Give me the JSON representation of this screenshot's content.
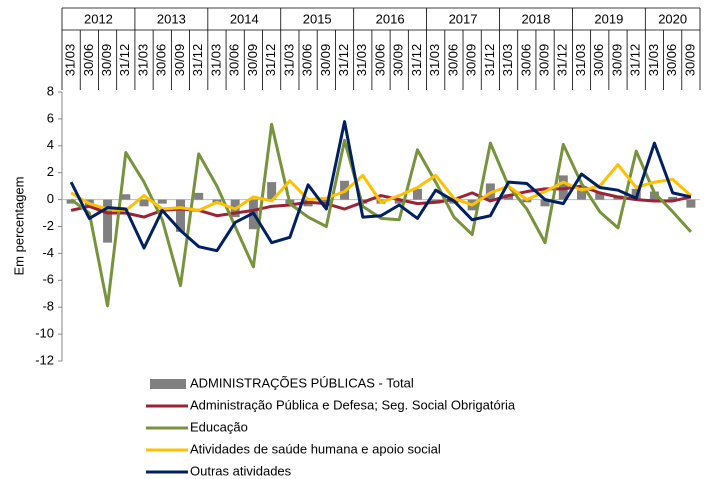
{
  "chart_data": {
    "type": "line",
    "y_label": "Em percentagem",
    "years": [
      "2012",
      "2013",
      "2014",
      "2015",
      "2016",
      "2017",
      "2018",
      "2019",
      "2020"
    ],
    "categories": [
      "31/03",
      "30/06",
      "30/09",
      "31/12",
      "31/03",
      "30/06",
      "30/09",
      "31/12",
      "31/03",
      "30/06",
      "30/09",
      "31/12",
      "31/03",
      "30/06",
      "30/09",
      "31/12",
      "31/03",
      "30/06",
      "30/09",
      "31/12",
      "31/03",
      "30/06",
      "30/09",
      "31/12",
      "31/03",
      "30/06",
      "30/09",
      "31/12",
      "31/03",
      "30/06",
      "30/09",
      "31/12",
      "31/03",
      "30/06",
      "30/09"
    ],
    "ylim": [
      -12,
      8
    ],
    "yticks": [
      -12,
      -10,
      -8,
      -6,
      -4,
      -2,
      0,
      2,
      4,
      6,
      8
    ],
    "series": [
      {
        "name": "ADMINISTRAÇÕES PÚBLICAS - Total",
        "type": "bar",
        "color": "#808080",
        "values": [
          -0.3,
          -0.5,
          -3.2,
          0.4,
          -0.5,
          -0.3,
          -2.4,
          0.5,
          -0.3,
          -1.3,
          -2.2,
          1.3,
          -0.3,
          -0.5,
          -0.5,
          1.4,
          -0.3,
          -0.3,
          -0.3,
          0.8,
          -0.3,
          -0.3,
          -0.8,
          1.2,
          0.4,
          -0.2,
          -0.5,
          1.8,
          0.7,
          0.5,
          0.3,
          0.8,
          0.6,
          0.2,
          -0.6
        ]
      },
      {
        "name": "Administração Pública e Defesa; Seg. Social Obrigatória",
        "type": "line",
        "color": "#9b2335",
        "values": [
          -0.8,
          -0.5,
          -1.0,
          -1.0,
          -1.3,
          -0.8,
          -0.7,
          -0.8,
          -1.2,
          -1.0,
          -0.8,
          -0.5,
          -0.4,
          -0.2,
          -0.3,
          -0.7,
          -0.2,
          0.3,
          0.0,
          -0.3,
          -0.2,
          0.0,
          0.5,
          -0.1,
          0.3,
          0.6,
          0.8,
          0.8,
          1.0,
          0.5,
          0.2,
          0.0,
          -0.1,
          -0.1,
          0.2
        ]
      },
      {
        "name": "Educação",
        "type": "line",
        "color": "#77933c",
        "values": [
          0.0,
          -1.0,
          -7.9,
          3.5,
          1.3,
          -1.5,
          -6.4,
          3.4,
          1.0,
          -2.0,
          -5.0,
          5.6,
          -0.3,
          -1.3,
          -2.0,
          4.4,
          -0.5,
          -1.4,
          -1.5,
          3.7,
          1.3,
          -1.3,
          -2.6,
          4.2,
          1.0,
          -0.7,
          -3.2,
          4.1,
          1.2,
          -0.9,
          -2.1,
          3.6,
          0.5,
          -0.9,
          -2.4
        ]
      },
      {
        "name": "Atividades de saúde humana e apoio social",
        "type": "line",
        "color": "#ffc000",
        "values": [
          0.5,
          -0.3,
          -0.7,
          -0.8,
          0.3,
          -0.7,
          -0.6,
          -0.8,
          -0.2,
          -0.7,
          0.2,
          -0.1,
          1.4,
          0.0,
          0.1,
          0.6,
          1.8,
          -0.2,
          0.3,
          0.9,
          1.8,
          0.1,
          -0.4,
          0.5,
          1.0,
          0.0,
          0.6,
          1.3,
          0.7,
          1.0,
          2.6,
          0.9,
          1.3,
          1.5,
          0.3
        ]
      },
      {
        "name": "Outras atividades",
        "type": "line",
        "color": "#002060",
        "values": [
          1.3,
          -1.4,
          -0.6,
          -0.7,
          -3.6,
          -0.8,
          -2.3,
          -3.5,
          -3.8,
          -1.7,
          -1.0,
          -3.2,
          -2.8,
          1.1,
          -0.7,
          5.8,
          -1.3,
          -1.2,
          -0.4,
          -1.4,
          0.7,
          -0.1,
          -1.5,
          -1.2,
          1.3,
          1.2,
          0.0,
          -0.3,
          1.9,
          0.9,
          0.7,
          0.1,
          4.2,
          0.5,
          0.2
        ]
      }
    ]
  }
}
